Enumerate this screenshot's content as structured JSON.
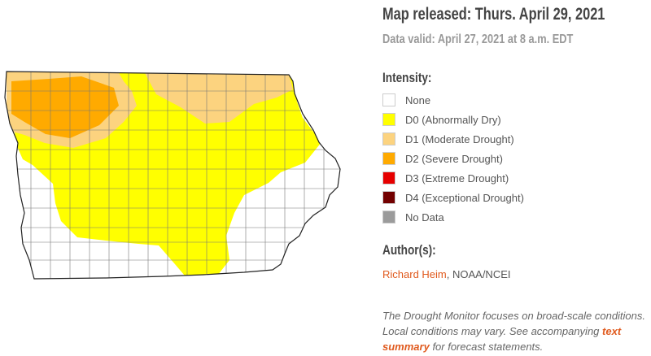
{
  "header": {
    "title": "Map released: Thurs. April 29, 2021",
    "valid": "Data valid: April 27, 2021 at 8 a.m. EDT"
  },
  "legend": {
    "title": "Intensity:",
    "items": [
      {
        "label": "None",
        "color": "#ffffff"
      },
      {
        "label": "D0 (Abnormally Dry)",
        "color": "#ffff00"
      },
      {
        "label": "D1 (Moderate Drought)",
        "color": "#fcd37f"
      },
      {
        "label": "D2 (Severe Drought)",
        "color": "#ffaa00"
      },
      {
        "label": "D3 (Extreme Drought)",
        "color": "#e60000"
      },
      {
        "label": "D4 (Exceptional Drought)",
        "color": "#730000"
      },
      {
        "label": "No Data",
        "color": "#9b9b9b"
      }
    ]
  },
  "author": {
    "title": "Author(s):",
    "name": "Richard Heim",
    "affiliation": ", NOAA/NCEI"
  },
  "note": {
    "before": "The Drought Monitor focuses on broad-scale conditions. Local conditions may vary. See accompanying",
    "link": "text summary",
    "after": "for forecast statements."
  }
}
